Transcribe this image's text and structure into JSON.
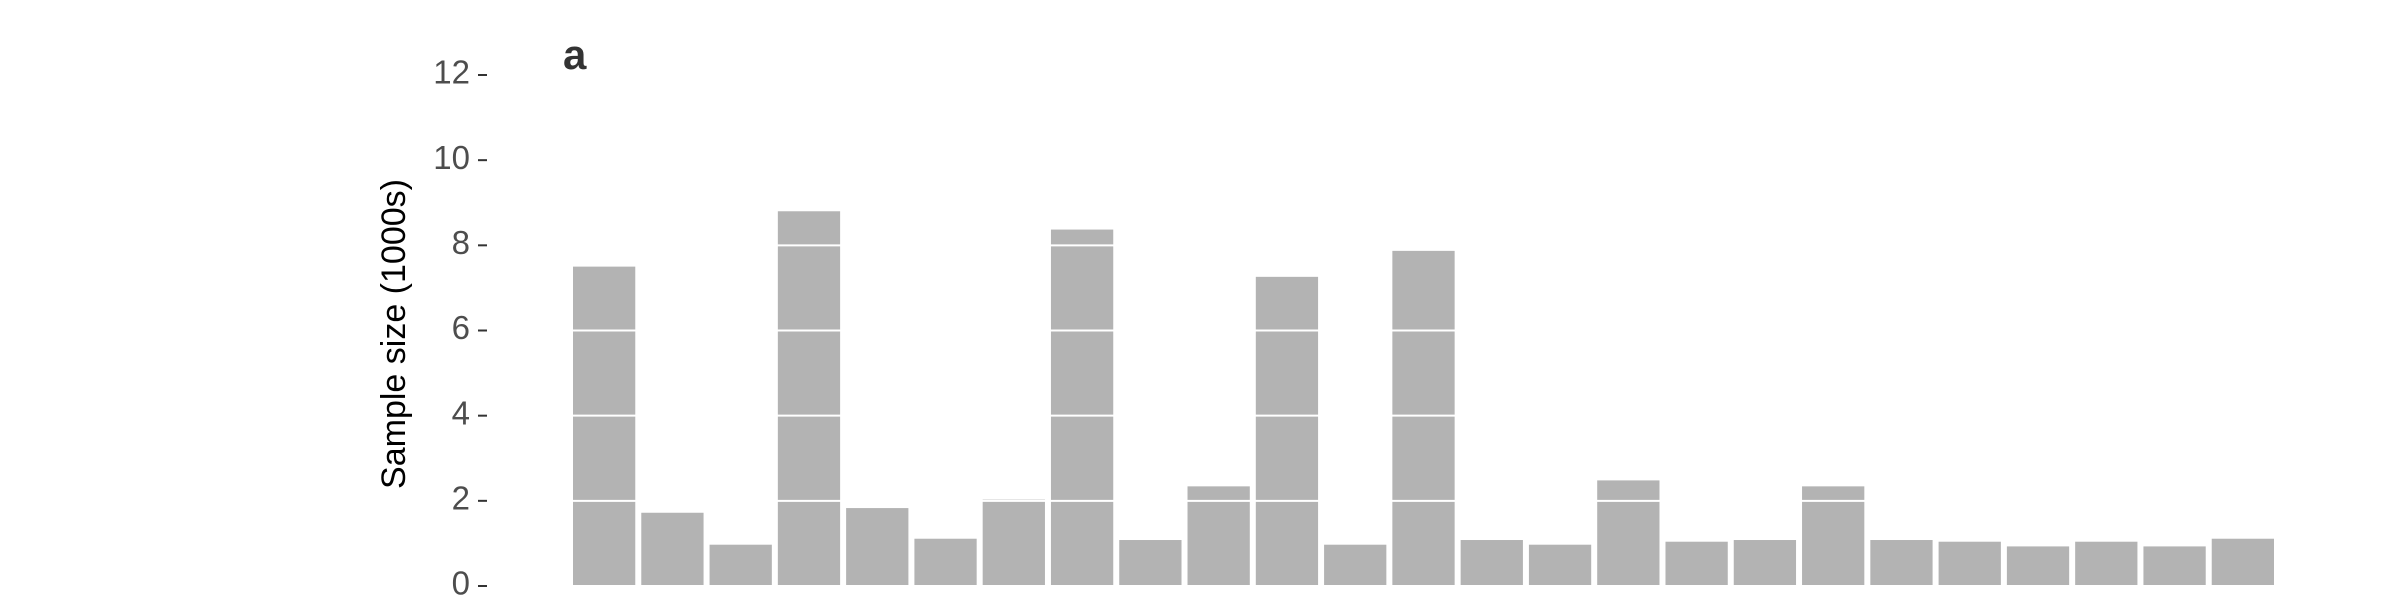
{
  "chart_data": {
    "type": "bar",
    "panel_label": "a",
    "ylabel": "Sample size (1000s)",
    "categories": [
      null,
      null,
      null,
      null,
      null,
      null,
      null,
      null,
      null,
      null,
      null,
      null,
      null,
      null,
      null,
      null,
      null,
      null,
      null,
      null,
      null,
      null,
      null,
      null,
      null
    ],
    "values": [
      7.5,
      1.72,
      0.97,
      8.8,
      1.83,
      1.11,
      2.03,
      8.37,
      1.08,
      2.34,
      7.26,
      0.97,
      7.87,
      1.08,
      0.97,
      2.48,
      1.04,
      1.08,
      2.34,
      1.08,
      1.04,
      0.93,
      1.04,
      0.93,
      1.11
    ],
    "color": "#b3b3b3",
    "ylim": [
      0,
      12
    ],
    "yticks": [
      0,
      2,
      4,
      6,
      8,
      10,
      12
    ],
    "grid": true,
    "grid_color": "#ffffff"
  }
}
